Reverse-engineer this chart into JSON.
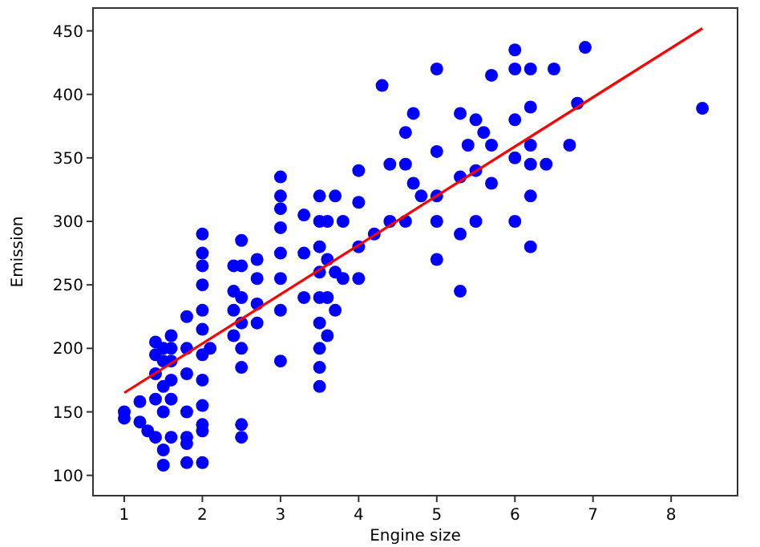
{
  "chart_data": {
    "type": "scatter",
    "xlabel": "Engine size",
    "ylabel": "Emission",
    "xlim": [
      0.6,
      8.85
    ],
    "ylim": [
      84,
      468
    ],
    "xticks": [
      1,
      2,
      3,
      4,
      5,
      6,
      7,
      8
    ],
    "yticks": [
      100,
      150,
      200,
      250,
      300,
      350,
      400,
      450
    ],
    "grid": false,
    "marker": "circle",
    "series": [
      {
        "color": "#0000ff",
        "x": [
          1,
          1,
          1.2,
          1.2,
          1.3,
          1.4,
          1.4,
          1.4,
          1.4,
          1.4,
          1.5,
          1.5,
          1.5,
          1.5,
          1.5,
          1.5,
          1.6,
          1.6,
          1.6,
          1.6,
          1.6,
          1.6,
          1.8,
          1.8,
          1.8,
          1.8,
          1.8,
          1.8,
          1.8,
          2,
          2,
          2,
          2,
          2,
          2,
          2,
          2,
          2,
          2,
          2,
          2,
          2.1,
          2.4,
          2.4,
          2.4,
          2.4,
          2.5,
          2.5,
          2.5,
          2.5,
          2.5,
          2.5,
          2.5,
          2.5,
          2.7,
          2.7,
          2.7,
          2.7,
          3,
          3,
          3,
          3,
          3,
          3,
          3,
          3,
          3.3,
          3.3,
          3.3,
          3.5,
          3.5,
          3.5,
          3.5,
          3.5,
          3.5,
          3.5,
          3.5,
          3.5,
          3.6,
          3.6,
          3.6,
          3.6,
          3.7,
          3.7,
          3.7,
          3.8,
          3.8,
          4,
          4,
          4,
          4,
          4.2,
          4.3,
          4.4,
          4.4,
          4.6,
          4.6,
          4.6,
          4.7,
          4.7,
          4.8,
          5,
          5,
          5,
          5,
          5,
          5.3,
          5.3,
          5.3,
          5.3,
          5.4,
          5.5,
          5.5,
          5.5,
          5.6,
          5.7,
          5.7,
          5.7,
          6,
          6,
          6,
          6,
          6,
          6.2,
          6.2,
          6.2,
          6.2,
          6.2,
          6.2,
          6.4,
          6.5,
          6.7,
          6.8,
          6.9,
          8.4
        ],
        "values": [
          150,
          145,
          158,
          142,
          135,
          130,
          160,
          180,
          195,
          205,
          108,
          120,
          150,
          170,
          190,
          200,
          130,
          160,
          175,
          190,
          200,
          210,
          110,
          125,
          130,
          150,
          180,
          200,
          225,
          110,
          135,
          140,
          155,
          175,
          195,
          215,
          230,
          250,
          265,
          275,
          290,
          200,
          210,
          230,
          245,
          265,
          130,
          140,
          185,
          200,
          220,
          240,
          265,
          285,
          220,
          235,
          255,
          270,
          190,
          230,
          255,
          275,
          295,
          310,
          320,
          335,
          240,
          275,
          305,
          170,
          185,
          200,
          220,
          240,
          260,
          280,
          300,
          320,
          210,
          240,
          270,
          300,
          230,
          260,
          320,
          255,
          300,
          255,
          280,
          315,
          340,
          290,
          407,
          300,
          345,
          300,
          345,
          370,
          330,
          385,
          320,
          270,
          300,
          320,
          355,
          420,
          245,
          290,
          335,
          385,
          360,
          300,
          340,
          380,
          370,
          330,
          360,
          415,
          300,
          350,
          380,
          420,
          435,
          280,
          320,
          345,
          360,
          390,
          420,
          345,
          420,
          360,
          393,
          437,
          389
        ]
      },
      {
        "type": "line",
        "marker": "none",
        "color": "#ff0000",
        "x": [
          1,
          8.4
        ],
        "values": [
          165,
          452
        ]
      }
    ]
  }
}
